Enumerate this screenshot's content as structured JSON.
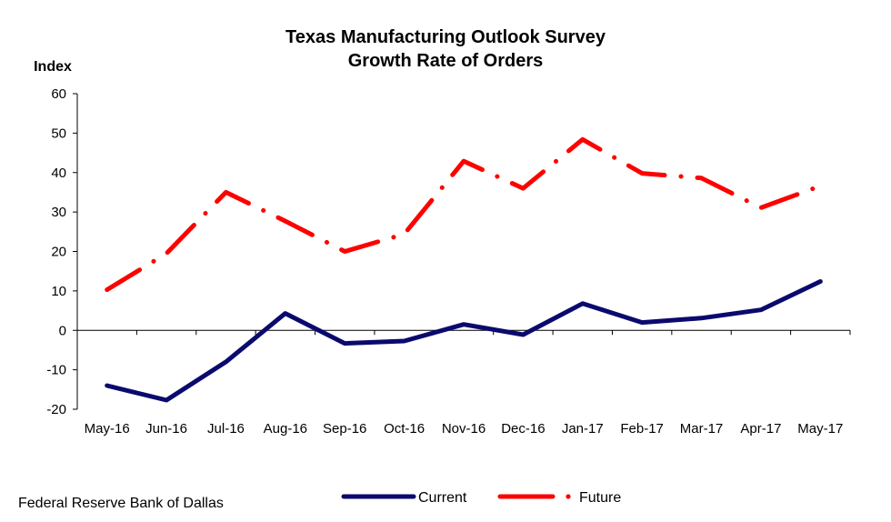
{
  "chart_data": {
    "type": "line",
    "title": [
      "Texas Manufacturing Outlook Survey",
      "Growth Rate of Orders"
    ],
    "ylabel": "Index",
    "xlabel": "",
    "ylim": [
      -20,
      60
    ],
    "yticks": [
      60,
      50,
      40,
      30,
      20,
      10,
      0,
      -10,
      -20
    ],
    "categories": [
      "May-16",
      "Jun-16",
      "Jul-16",
      "Aug-16",
      "Sep-16",
      "Oct-16",
      "Nov-16",
      "Dec-16",
      "Jan-17",
      "Feb-17",
      "Mar-17",
      "Apr-17",
      "May-17"
    ],
    "grid": false,
    "legend_position": "bottom",
    "series": [
      {
        "name": "Current",
        "color": "#0A0A6E",
        "style": "solid",
        "values": [
          -14.0,
          -17.7,
          -8.0,
          4.3,
          -3.3,
          -2.7,
          1.5,
          -1.1,
          6.8,
          2.0,
          3.1,
          5.2,
          12.4
        ]
      },
      {
        "name": "Future",
        "color": "#FF0000",
        "style": "dash-dot",
        "values": [
          10.3,
          19.5,
          35.0,
          27.7,
          20.0,
          24.4,
          42.9,
          36.0,
          48.4,
          39.8,
          38.6,
          31.1,
          36.6
        ]
      }
    ]
  },
  "source": "Federal Reserve Bank of Dallas"
}
